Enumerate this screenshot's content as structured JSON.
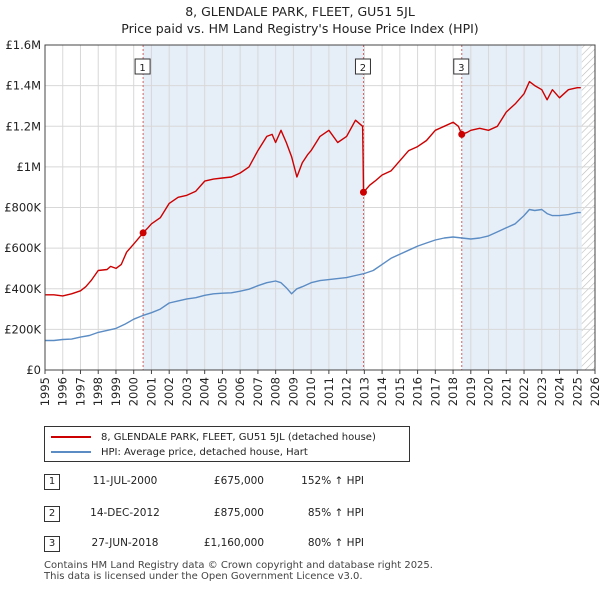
{
  "title_line1": "8, GLENDALE PARK, FLEET, GU51 5JL",
  "title_line2": "Price paid vs. HM Land Registry's House Price Index (HPI)",
  "chart_data": {
    "type": "line",
    "title": "8, GLENDALE PARK, FLEET, GU51 5JL — Price paid vs. HM Land Registry's House Price Index (HPI)",
    "xlim": [
      1995,
      2026
    ],
    "ylim": [
      0,
      1600000
    ],
    "x_ticks": [
      "1995",
      "1996",
      "1997",
      "1998",
      "1999",
      "2000",
      "2001",
      "2002",
      "2003",
      "2004",
      "2005",
      "2006",
      "2007",
      "2008",
      "2009",
      "2010",
      "2011",
      "2012",
      "2013",
      "2014",
      "2015",
      "2016",
      "2017",
      "2018",
      "2019",
      "2020",
      "2021",
      "2022",
      "2023",
      "2024",
      "2025",
      "2026"
    ],
    "y_ticks": [
      {
        "value": 0,
        "label": "£0"
      },
      {
        "value": 200000,
        "label": "£200K"
      },
      {
        "value": 400000,
        "label": "£400K"
      },
      {
        "value": 600000,
        "label": "£600K"
      },
      {
        "value": 800000,
        "label": "£800K"
      },
      {
        "value": 1000000,
        "label": "£1M"
      },
      {
        "value": 1200000,
        "label": "£1.2M"
      },
      {
        "value": 1400000,
        "label": "£1.4M"
      },
      {
        "value": 1600000,
        "label": "£1.6M"
      }
    ],
    "shaded_ranges": [
      [
        2000.53,
        2012.95
      ],
      [
        2018.49,
        2025.25
      ]
    ],
    "hatched_range": [
      2025.25,
      2026
    ],
    "colors": {
      "price": "#cc0000",
      "hpi": "#5b8cc4",
      "shade": "#e6eef8",
      "marker_line": "#cc6666",
      "grid": "#d8d8d8"
    },
    "series": [
      {
        "name": "8, GLENDALE PARK, FLEET, GU51 5JL (detached house)",
        "color": "#cc0000",
        "x": [
          1995,
          1995.5,
          1996,
          1996.5,
          1997,
          1997.3,
          1997.6,
          1998,
          1998.5,
          1998.7,
          1999,
          1999.3,
          1999.6,
          2000,
          2000.53,
          2000.8,
          2001,
          2001.5,
          2002,
          2002.5,
          2003,
          2003.5,
          2004,
          2004.5,
          2005,
          2005.5,
          2006,
          2006.5,
          2007,
          2007.5,
          2007.8,
          2008,
          2008.3,
          2008.6,
          2008.9,
          2009.2,
          2009.5,
          2009.8,
          2010,
          2010.5,
          2011,
          2011.5,
          2012,
          2012.5,
          2012.9,
          2012.93,
          2012.95,
          2013.3,
          2013.6,
          2014,
          2014.5,
          2015,
          2015.5,
          2016,
          2016.5,
          2017,
          2017.5,
          2018,
          2018.3,
          2018.49,
          2018.8,
          2019,
          2019.5,
          2020,
          2020.5,
          2021,
          2021.5,
          2022,
          2022.3,
          2022.6,
          2023,
          2023.3,
          2023.6,
          2024,
          2024.5,
          2025,
          2025.2
        ],
        "values": [
          370000,
          370000,
          365000,
          375000,
          390000,
          410000,
          440000,
          490000,
          495000,
          510000,
          500000,
          520000,
          580000,
          620000,
          675000,
          700000,
          720000,
          750000,
          820000,
          850000,
          860000,
          880000,
          930000,
          940000,
          945000,
          950000,
          970000,
          1000000,
          1080000,
          1150000,
          1160000,
          1120000,
          1180000,
          1120000,
          1050000,
          950000,
          1020000,
          1060000,
          1080000,
          1150000,
          1180000,
          1120000,
          1150000,
          1230000,
          1200000,
          1050000,
          875000,
          910000,
          930000,
          960000,
          980000,
          1030000,
          1080000,
          1100000,
          1130000,
          1180000,
          1200000,
          1220000,
          1200000,
          1160000,
          1170000,
          1180000,
          1190000,
          1180000,
          1200000,
          1270000,
          1310000,
          1360000,
          1420000,
          1400000,
          1380000,
          1330000,
          1380000,
          1340000,
          1380000,
          1390000,
          1390000
        ]
      },
      {
        "name": "HPI: Average price, detached house, Hart",
        "color": "#5b8cc4",
        "x": [
          1995,
          1995.5,
          1996,
          1996.5,
          1997,
          1997.5,
          1998,
          1998.5,
          1999,
          1999.5,
          2000,
          2000.5,
          2001,
          2001.5,
          2002,
          2002.5,
          2003,
          2003.5,
          2004,
          2004.5,
          2005,
          2005.5,
          2006,
          2006.5,
          2007,
          2007.5,
          2008,
          2008.3,
          2008.6,
          2008.9,
          2009.2,
          2009.5,
          2010,
          2010.5,
          2011,
          2011.5,
          2012,
          2012.5,
          2013,
          2013.5,
          2014,
          2014.5,
          2015,
          2015.5,
          2016,
          2016.5,
          2017,
          2017.5,
          2018,
          2018.5,
          2019,
          2019.5,
          2020,
          2020.5,
          2021,
          2021.5,
          2022,
          2022.3,
          2022.6,
          2023,
          2023.3,
          2023.6,
          2024,
          2024.5,
          2025,
          2025.2
        ],
        "values": [
          145000,
          145000,
          150000,
          152000,
          162000,
          170000,
          185000,
          195000,
          205000,
          225000,
          250000,
          268000,
          282000,
          300000,
          330000,
          340000,
          350000,
          356000,
          368000,
          375000,
          378000,
          380000,
          388000,
          398000,
          415000,
          430000,
          438000,
          430000,
          405000,
          375000,
          400000,
          410000,
          430000,
          440000,
          445000,
          450000,
          455000,
          465000,
          475000,
          490000,
          520000,
          550000,
          570000,
          590000,
          610000,
          625000,
          640000,
          650000,
          655000,
          650000,
          645000,
          650000,
          660000,
          680000,
          700000,
          720000,
          760000,
          790000,
          785000,
          790000,
          770000,
          760000,
          760000,
          765000,
          775000,
          775000
        ]
      }
    ],
    "annotations": [
      {
        "label": "1",
        "x": 2000.53,
        "value": 675000
      },
      {
        "label": "2",
        "x": 2012.95,
        "value": 875000
      },
      {
        "label": "3",
        "x": 2018.49,
        "value": 1160000
      }
    ]
  },
  "legend": {
    "price_label": "8, GLENDALE PARK, FLEET, GU51 5JL (detached house)",
    "hpi_label": "HPI: Average price, detached house, Hart"
  },
  "transactions": [
    {
      "num": "1",
      "date": "11-JUL-2000",
      "price": "£675,000",
      "pct": "152% ↑ HPI"
    },
    {
      "num": "2",
      "date": "14-DEC-2012",
      "price": "£875,000",
      "pct": "85% ↑ HPI"
    },
    {
      "num": "3",
      "date": "27-JUN-2018",
      "price": "£1,160,000",
      "pct": "80% ↑ HPI"
    }
  ],
  "footer": {
    "line1": "Contains HM Land Registry data © Crown copyright and database right 2025.",
    "line2": "This data is licensed under the Open Government Licence v3.0."
  }
}
